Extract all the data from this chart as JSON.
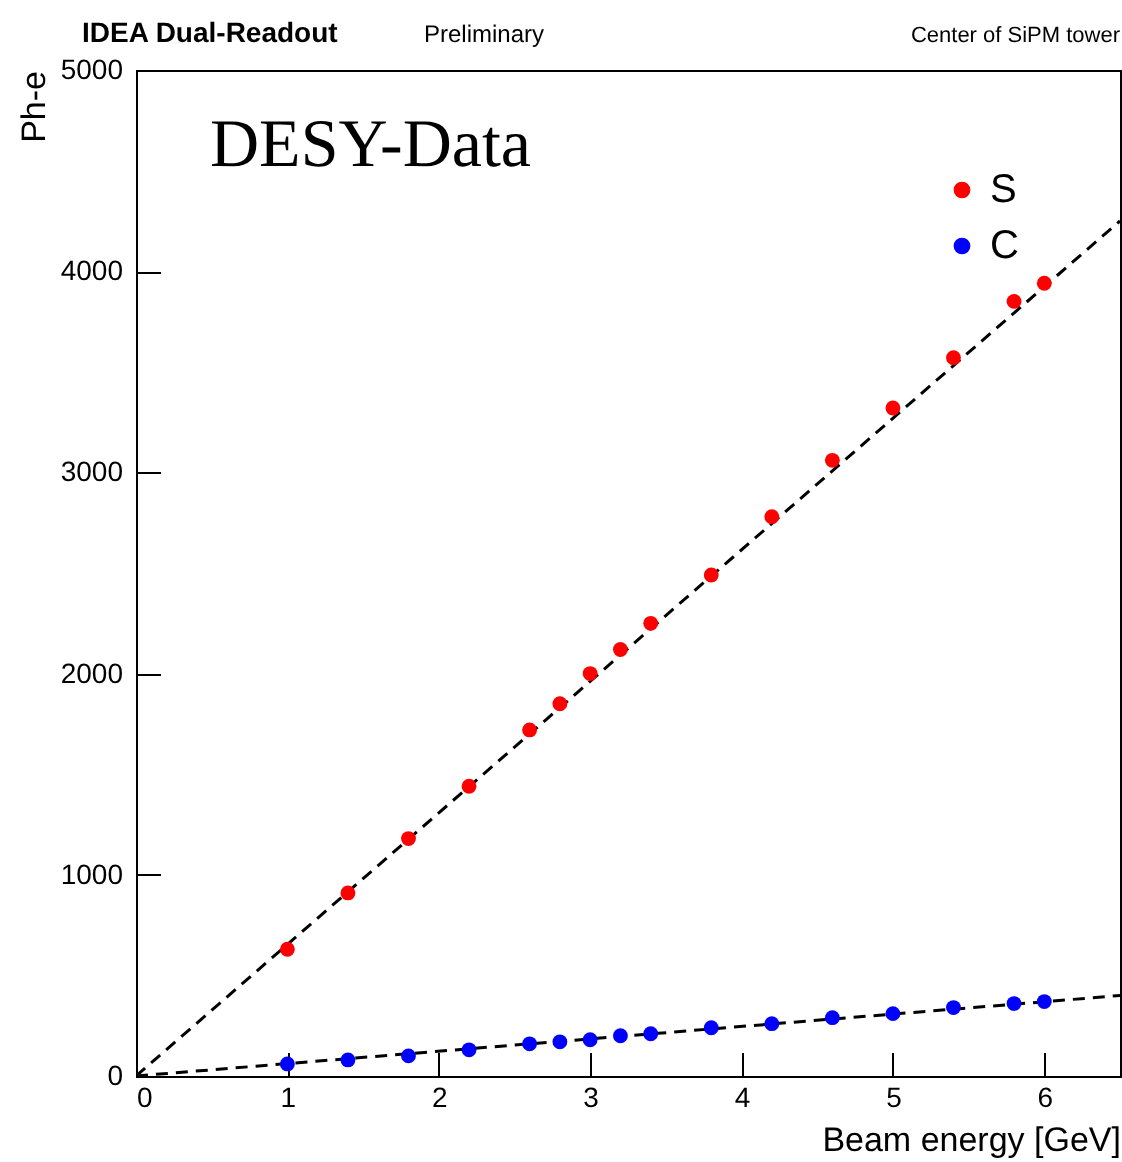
{
  "chart_data": {
    "type": "scatter",
    "xlabel": "Beam energy [GeV]",
    "ylabel": "Ph-e",
    "annotations": [
      "IDEA Dual-Readout",
      "Preliminary",
      "Center of SiPM tower",
      "DESY-Data"
    ],
    "xlim": [
      0,
      6.5
    ],
    "xticks": [
      0,
      1,
      2,
      3,
      4,
      5,
      6
    ],
    "ylim": [
      0,
      5000
    ],
    "yticks": [
      0,
      1000,
      2000,
      3000,
      4000,
      5000
    ],
    "legend": "top right",
    "marker": "circle",
    "series": [
      {
        "name": "S",
        "color": "#ff0000",
        "x": [
          1,
          1.4,
          1.8,
          2.2,
          2.6,
          2.8,
          3.0,
          3.2,
          3.4,
          3.8,
          4.2,
          4.6,
          5.0,
          5.4,
          5.8,
          6.0
        ],
        "values": [
          630,
          910,
          1180,
          1440,
          1720,
          1850,
          2000,
          2120,
          2250,
          2490,
          2780,
          3060,
          3320,
          3570,
          3850,
          3940
        ]
      },
      {
        "name": "C",
        "color": "#0000ff",
        "x": [
          1,
          1.4,
          1.8,
          2.2,
          2.6,
          2.8,
          3.0,
          3.2,
          3.4,
          3.8,
          4.2,
          4.6,
          5.0,
          5.4,
          5.8,
          6.0
        ],
        "values": [
          60,
          80,
          100,
          130,
          160,
          170,
          180,
          200,
          210,
          240,
          260,
          290,
          310,
          340,
          360,
          370
        ]
      },
      {
        "type": "line",
        "color": "#000000",
        "line_style": "dashed",
        "marker": "none",
        "x": [
          0,
          6.5
        ],
        "values": [
          0,
          4250
        ]
      },
      {
        "type": "line",
        "color": "#000000",
        "line_style": "dashed",
        "marker": "none",
        "x": [
          0,
          6.5
        ],
        "values": [
          0,
          400
        ]
      }
    ]
  }
}
